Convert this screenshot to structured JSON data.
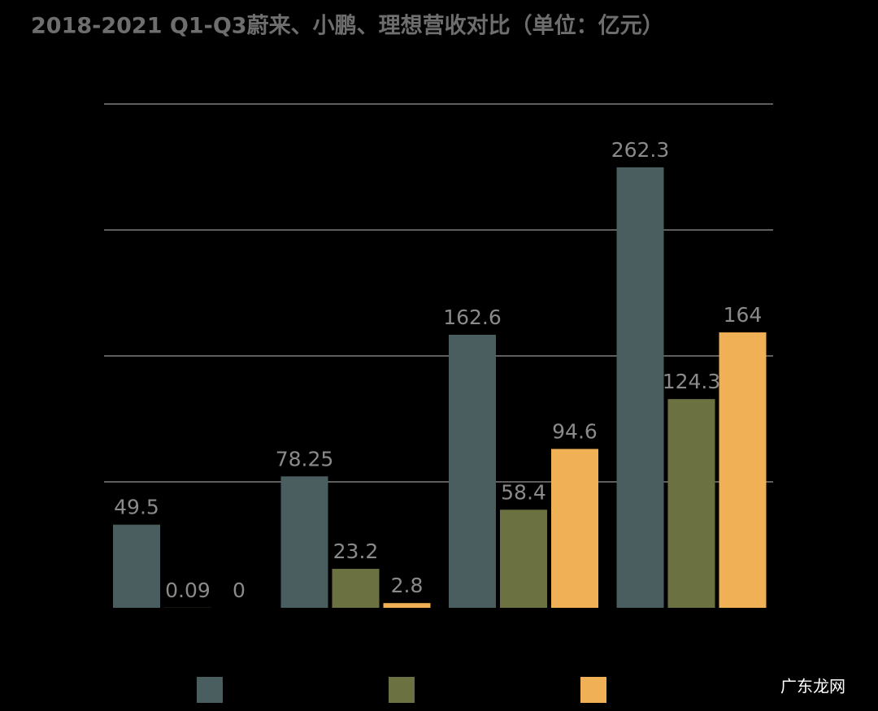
{
  "chart_data": {
    "type": "bar",
    "title": "2018-2021 Q1-Q3蔚来、小鹏、理想营收对比（单位：亿元）",
    "categories": [
      null,
      null,
      null,
      null
    ],
    "series": [
      {
        "color": "#4a5e5f",
        "values": [
          49.5,
          78.25,
          162.6,
          262.3
        ]
      },
      {
        "color": "#6b7140",
        "values": [
          0.09,
          23.2,
          58.4,
          124.3
        ]
      },
      {
        "color": "#f0b055",
        "values": [
          0,
          2.8,
          94.6,
          164
        ]
      }
    ],
    "ylim": [
      0,
      300
    ],
    "yticks": [
      75,
      150,
      225,
      300
    ],
    "grid": true
  },
  "watermark": "广东龙网"
}
